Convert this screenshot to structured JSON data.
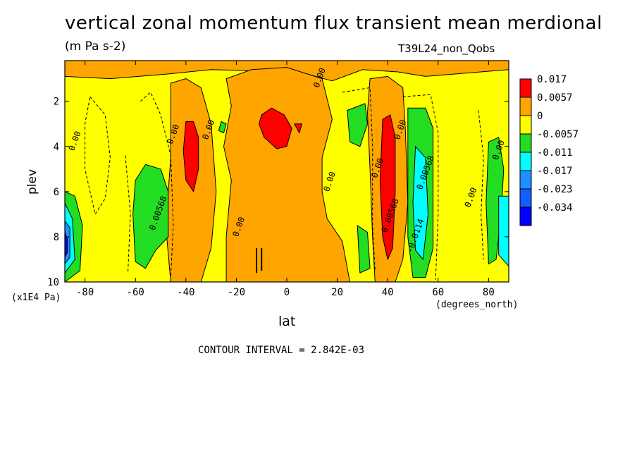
{
  "chart_data": {
    "type": "heatmap",
    "title": "vertical zonal momentum flux transient mean merdional",
    "subtitle": "(m Pa s-2)",
    "run_label": "T39L24_non_Qobs",
    "xlabel": "lat",
    "xunit": "(degrees_north)",
    "ylabel": "plev",
    "yunit": "(x1E4 Pa)",
    "xlim": [
      -88,
      88
    ],
    "ylim": [
      10,
      0.2
    ],
    "x_ticks": [
      "-80",
      "-60",
      "-40",
      "-20",
      "0",
      "20",
      "40",
      "60",
      "80"
    ],
    "x_tick_values": [
      -80,
      -60,
      -40,
      -20,
      0,
      20,
      40,
      60,
      80
    ],
    "y_ticks": [
      "2",
      "4",
      "6",
      "8",
      "10"
    ],
    "y_tick_values": [
      2,
      4,
      6,
      8,
      10
    ],
    "contour_interval_text": "CONTOUR INTERVAL = 2.842E-03",
    "legend": {
      "labels": [
        "0.017",
        "0.0057",
        "0",
        "-0.0057",
        "-0.011",
        "-0.017",
        "-0.023",
        "-0.034"
      ],
      "colors": [
        "#ff0000",
        "#ffa500",
        "#ffff00",
        "#22dd22",
        "#00ffff",
        "#1e90ff",
        "#1060ff",
        "#0000ff"
      ]
    },
    "contour_labels": [
      {
        "text": "0.00",
        "lat": -83,
        "plev": 3.8
      },
      {
        "text": "0.00",
        "lat": -44,
        "plev": 3.5
      },
      {
        "text": "0.00",
        "lat": -30,
        "plev": 3.3
      },
      {
        "text": "0.00568",
        "lat": -50,
        "plev": 7.0
      },
      {
        "text": "0.00",
        "lat": -18,
        "plev": 7.6
      },
      {
        "text": "0.00",
        "lat": 14,
        "plev": 1.0
      },
      {
        "text": "0.00",
        "lat": 18,
        "plev": 5.6
      },
      {
        "text": "0.00",
        "lat": 37,
        "plev": 5.0
      },
      {
        "text": "0.00",
        "lat": 46,
        "plev": 3.3
      },
      {
        "text": "0.00568",
        "lat": 42,
        "plev": 7.1
      },
      {
        "text": "0.00568",
        "lat": 56,
        "plev": 5.2
      },
      {
        "text": "-0.0114",
        "lat": 52,
        "plev": 8.0
      },
      {
        "text": "0.00",
        "lat": 74,
        "plev": 6.3
      },
      {
        "text": "0.00",
        "lat": 85,
        "plev": 4.2
      }
    ]
  }
}
